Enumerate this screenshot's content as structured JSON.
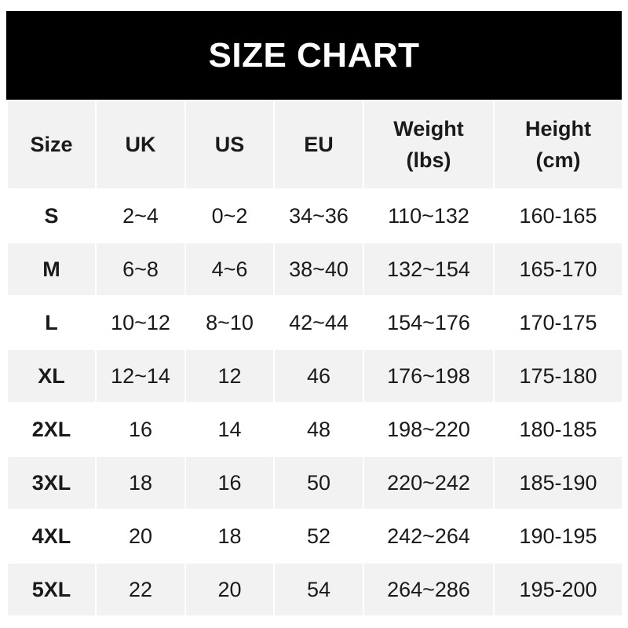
{
  "title": "SIZE CHART",
  "headers": [
    "Size",
    "UK",
    "US",
    "EU",
    "Weight\n(lbs)",
    "Height\n(cm)"
  ],
  "rows": [
    [
      "S",
      "2~4",
      "0~2",
      "34~36",
      "110~132",
      "160-165"
    ],
    [
      "M",
      "6~8",
      "4~6",
      "38~40",
      "132~154",
      "165-170"
    ],
    [
      "L",
      "10~12",
      "8~10",
      "42~44",
      "154~176",
      "170-175"
    ],
    [
      "XL",
      "12~14",
      "12",
      "46",
      "176~198",
      "175-180"
    ],
    [
      "2XL",
      "16",
      "14",
      "48",
      "198~220",
      "180-185"
    ],
    [
      "3XL",
      "18",
      "16",
      "50",
      "220~242",
      "185-190"
    ],
    [
      "4XL",
      "20",
      "18",
      "52",
      "242~264",
      "190-195"
    ],
    [
      "5XL",
      "22",
      "20",
      "54",
      "264~286",
      "195-200"
    ]
  ],
  "colors": {
    "banner": "#000000",
    "stripe": "#f2f2f2",
    "text": "#1a1a1a"
  }
}
